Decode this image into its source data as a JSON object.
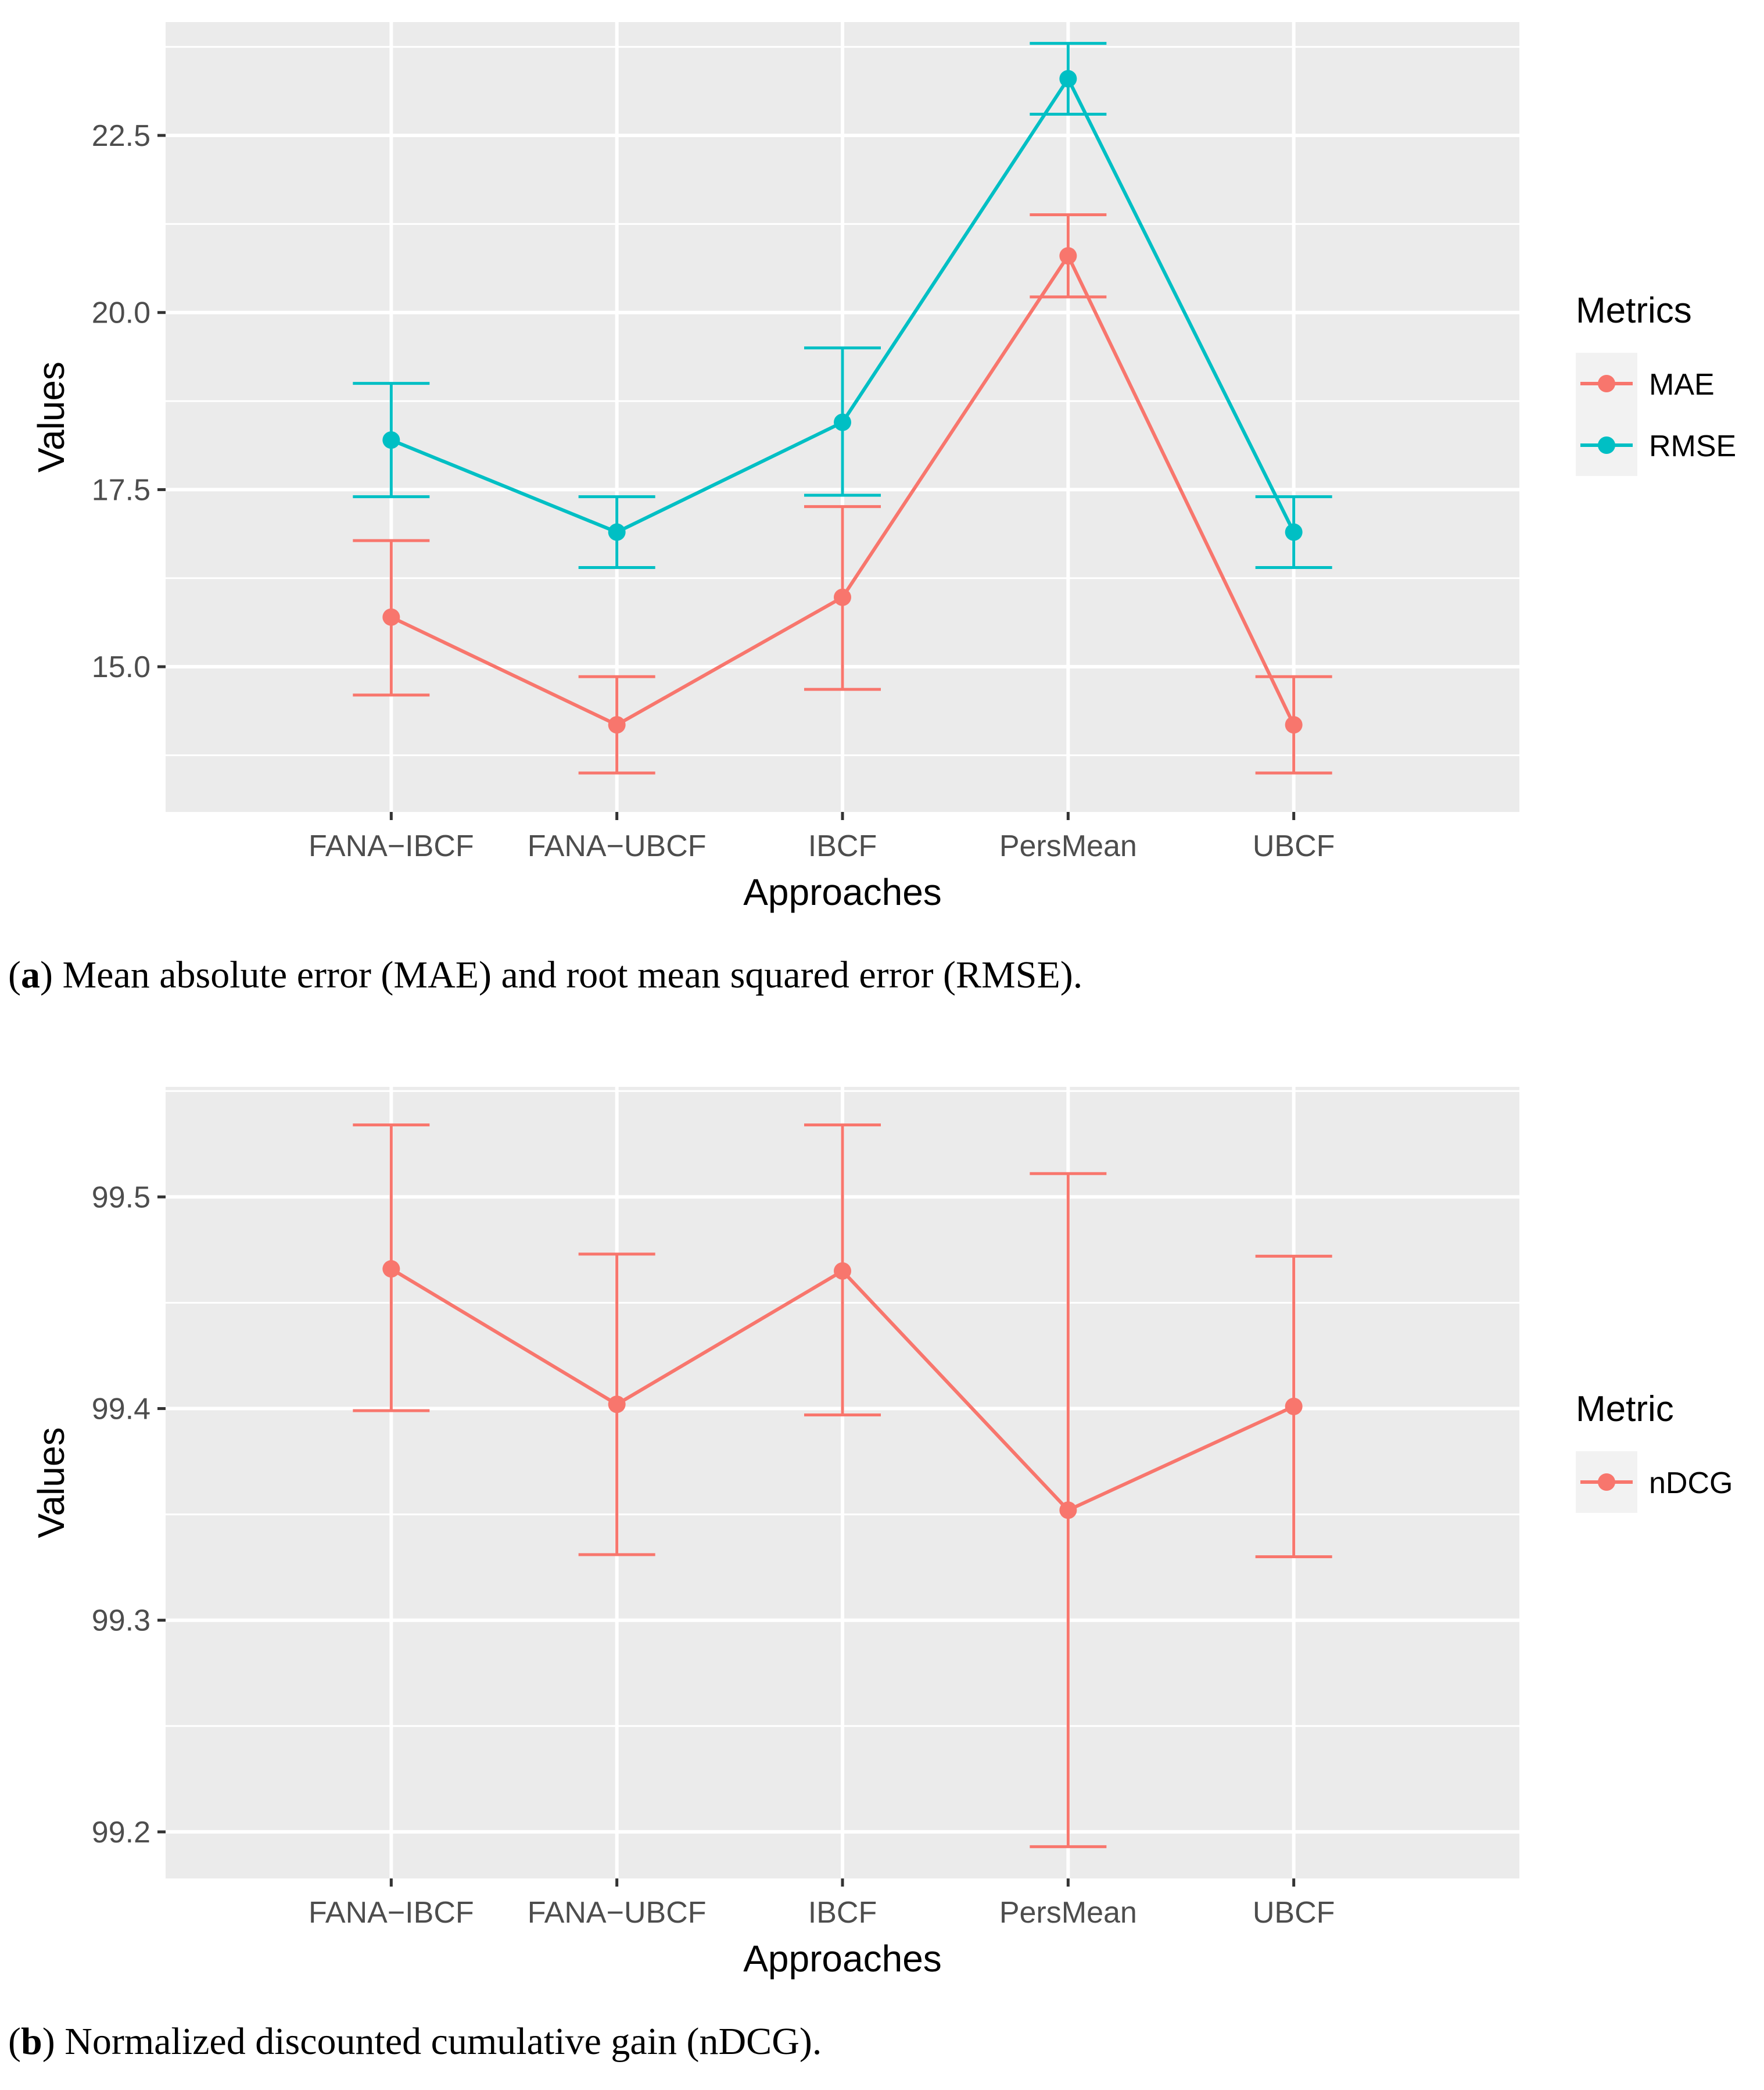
{
  "colors": {
    "panel": "#EBEBEB",
    "grid": "#FFFFFF",
    "mae": "#F8766D",
    "rmse": "#00BFC4",
    "tick": "#4D4D4D",
    "text": "#000000"
  },
  "panel_a": {
    "caption_letter": "a",
    "caption_text": "Mean absolute error (MAE) and root mean squared error (RMSE).",
    "xlabel": "Approaches",
    "ylabel": "Values",
    "legend_title": "Metrics"
  },
  "panel_b": {
    "caption_letter": "b",
    "caption_text": "Normalized discounted cumulative gain (nDCG).",
    "xlabel": "Approaches",
    "ylabel": "Values",
    "legend_title": "Metric"
  },
  "chart_data": [
    {
      "type": "line",
      "categories": [
        "FANA−IBCF",
        "FANA−UBCF",
        "IBCF",
        "PersMean",
        "UBCF"
      ],
      "xlabel": "Approaches",
      "ylabel": "Values",
      "ylim": [
        12.95,
        24.1
      ],
      "yticks": [
        15.0,
        17.5,
        20.0,
        22.5
      ],
      "ytick_labels": [
        "15.0",
        "17.5",
        "20.0",
        "22.5"
      ],
      "legend_title": "Metrics",
      "legend_position": "right",
      "grid": true,
      "series": [
        {
          "name": "MAE",
          "color": "#F8766D",
          "values": [
            15.7,
            14.18,
            15.98,
            20.8,
            14.18
          ],
          "lower": [
            14.6,
            13.5,
            14.68,
            20.22,
            13.5
          ],
          "upper": [
            16.78,
            14.86,
            17.26,
            21.38,
            14.86
          ]
        },
        {
          "name": "RMSE",
          "color": "#00BFC4",
          "values": [
            18.2,
            16.9,
            18.45,
            23.3,
            16.9
          ],
          "lower": [
            17.4,
            16.4,
            17.42,
            22.8,
            16.4
          ],
          "upper": [
            19.0,
            17.4,
            19.5,
            23.8,
            17.4
          ]
        }
      ]
    },
    {
      "type": "line",
      "categories": [
        "FANA−IBCF",
        "FANA−UBCF",
        "IBCF",
        "PersMean",
        "UBCF"
      ],
      "xlabel": "Approaches",
      "ylabel": "Values",
      "ylim": [
        99.178,
        99.552
      ],
      "yticks": [
        99.2,
        99.3,
        99.4,
        99.5
      ],
      "ytick_labels": [
        "99.2",
        "99.3",
        "99.4",
        "99.5"
      ],
      "legend_title": "Metric",
      "legend_position": "right",
      "grid": true,
      "series": [
        {
          "name": "nDCG",
          "color": "#F8766D",
          "values": [
            99.466,
            99.402,
            99.465,
            99.352,
            99.401
          ],
          "lower": [
            99.399,
            99.331,
            99.397,
            99.193,
            99.33
          ],
          "upper": [
            99.534,
            99.473,
            99.534,
            99.511,
            99.472
          ]
        }
      ]
    }
  ]
}
